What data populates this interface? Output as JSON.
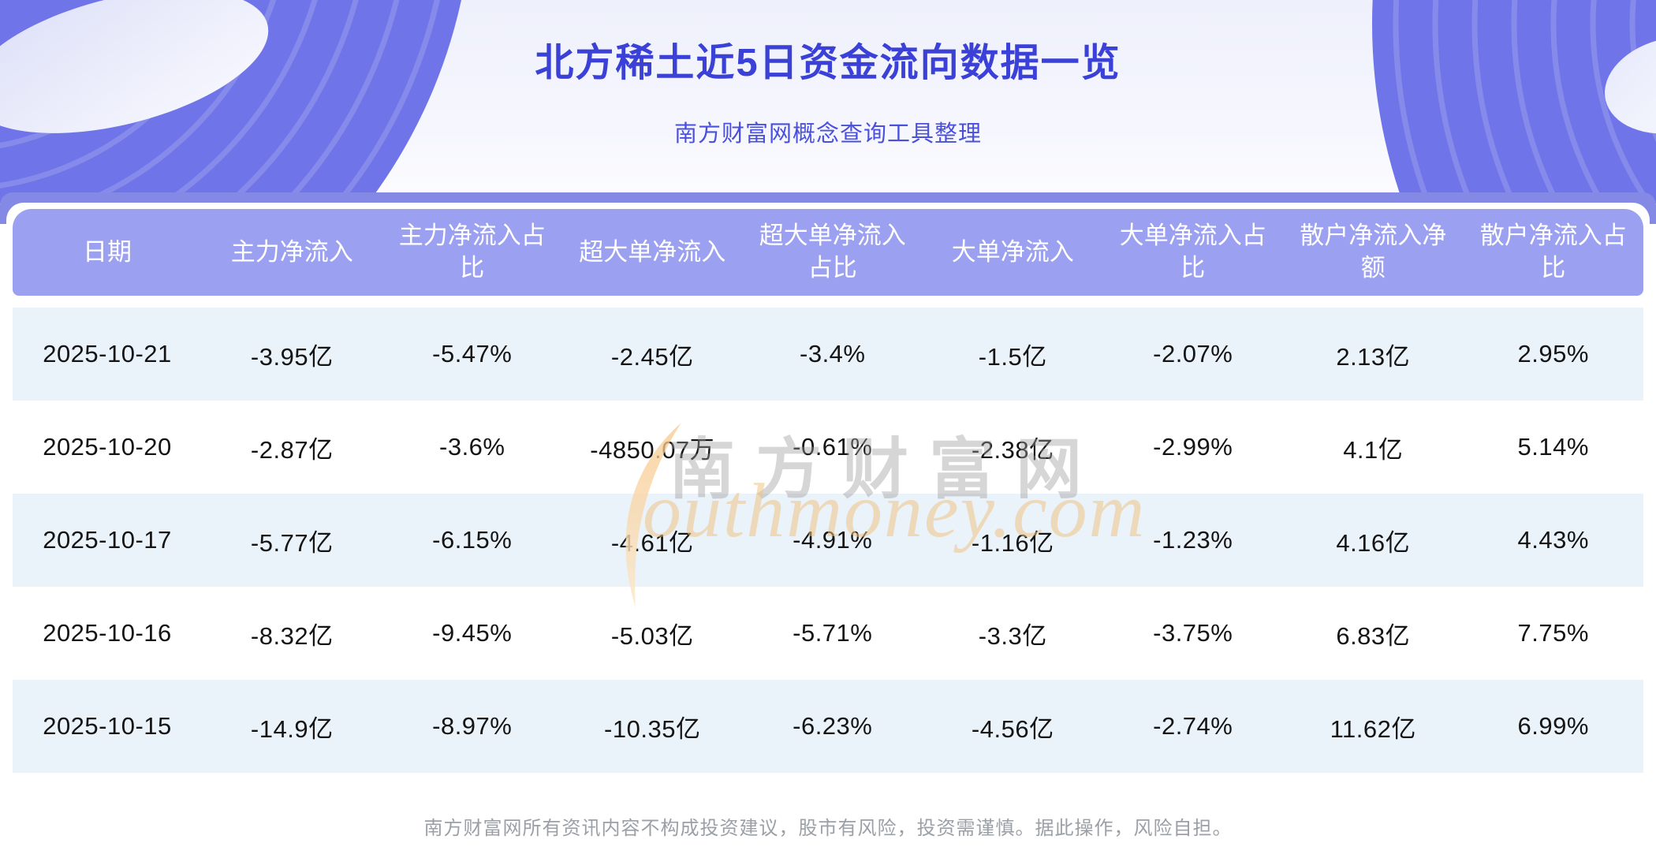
{
  "header": {
    "title": "北方稀土近5日资金流向数据一览",
    "subtitle": "南方财富网概念查询工具整理"
  },
  "watermark": {
    "cn_text": "南方财富网",
    "en_text": "outhmoney.com",
    "swoosh_icon": "orange-crescent"
  },
  "footer": {
    "disclaimer": "南方财富网所有资讯内容不构成投资建议，股市有风险，投资需谨慎。据此操作，风险自担。"
  },
  "colors": {
    "hero_purple": "#6f75e8",
    "top_bar_purple": "#8389e4",
    "table_header_purple": "#9ba0f0",
    "row_alt_blue": "#eaf2fa",
    "title_blue": "#3b41d7",
    "subtitle_blue": "#4a50dd",
    "footer_gray": "#9aa0a6",
    "watermark_gray": "#d8d8d8",
    "watermark_orange": "#f2d6ac"
  },
  "chart_data": {
    "type": "table",
    "title": "北方稀土近5日资金流向数据一览",
    "columns": [
      "日期",
      "主力净流入",
      "主力净流入占比",
      "超大单净流入",
      "超大单净流入占比",
      "大单净流入",
      "大单净流入占比",
      "散户净流入净额",
      "散户净流入占比"
    ],
    "header_display": [
      "日期",
      "主力净流入",
      "主力净流入占\n比",
      "超大单净流入",
      "超大单净流入\n占比",
      "大单净流入",
      "大单净流入占\n比",
      "散户净流入净\n额",
      "散户净流入占\n比"
    ],
    "rows": [
      [
        "2025-10-21",
        "-3.95亿",
        "-5.47%",
        "-2.45亿",
        "-3.4%",
        "-1.5亿",
        "-2.07%",
        "2.13亿",
        "2.95%"
      ],
      [
        "2025-10-20",
        "-2.87亿",
        "-3.6%",
        "-4850.07万",
        "-0.61%",
        "-2.38亿",
        "-2.99%",
        "4.1亿",
        "5.14%"
      ],
      [
        "2025-10-17",
        "-5.77亿",
        "-6.15%",
        "-4.61亿",
        "-4.91%",
        "-1.16亿",
        "-1.23%",
        "4.16亿",
        "4.43%"
      ],
      [
        "2025-10-16",
        "-8.32亿",
        "-9.45%",
        "-5.03亿",
        "-5.71%",
        "-3.3亿",
        "-3.75%",
        "6.83亿",
        "7.75%"
      ],
      [
        "2025-10-15",
        "-14.9亿",
        "-8.97%",
        "-10.35亿",
        "-6.23%",
        "-4.56亿",
        "-2.74%",
        "11.62亿",
        "6.99%"
      ]
    ]
  }
}
